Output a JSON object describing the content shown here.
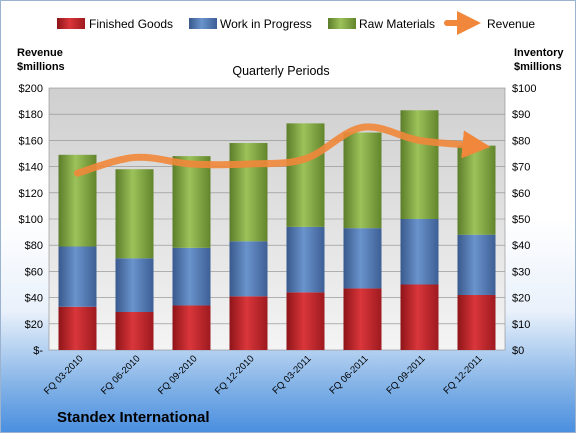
{
  "chart_data": {
    "type": "bar",
    "stacked": true,
    "title": "Quarterly Periods",
    "footer_title": "Standex International",
    "categories": [
      "FQ 03-2010",
      "FQ 06-2010",
      "FQ 09-2010",
      "FQ 12-2010",
      "FQ 03-2011",
      "FQ 06-2011",
      "FQ 09-2011",
      "FQ 12-2011"
    ],
    "series": [
      {
        "name": "Finished Goods",
        "axis": "right",
        "color": "#c0272d",
        "values": [
          16.5,
          14.5,
          17,
          20.5,
          22,
          23.5,
          25,
          21
        ]
      },
      {
        "name": "Work in Progress",
        "axis": "right",
        "color": "#4f78b5",
        "values": [
          23,
          20.5,
          22,
          21,
          25,
          23,
          25,
          23
        ]
      },
      {
        "name": "Raw Materials",
        "axis": "right",
        "color": "#7fa83e",
        "values": [
          35,
          34,
          35,
          37.5,
          39.5,
          36.5,
          41.5,
          34
        ]
      }
    ],
    "line_series": {
      "name": "Revenue",
      "axis": "left",
      "color": "#f0873a",
      "values": [
        135,
        147,
        142,
        142,
        146,
        170,
        160,
        156
      ]
    },
    "left_axis": {
      "label_line1": "Revenue",
      "label_line2": "$millions",
      "ticks": [
        "$-",
        "$20",
        "$40",
        "$60",
        "$80",
        "$100",
        "$120",
        "$140",
        "$160",
        "$180",
        "$200"
      ],
      "ylim": [
        0,
        200
      ]
    },
    "right_axis": {
      "label_line1": "Inventory",
      "label_line2": "$millions",
      "ticks": [
        "$0",
        "$10",
        "$20",
        "$30",
        "$40",
        "$50",
        "$60",
        "$70",
        "$80",
        "$90",
        "$100"
      ],
      "ylim": [
        0,
        100
      ]
    },
    "legend_position": "top",
    "grid": true
  }
}
